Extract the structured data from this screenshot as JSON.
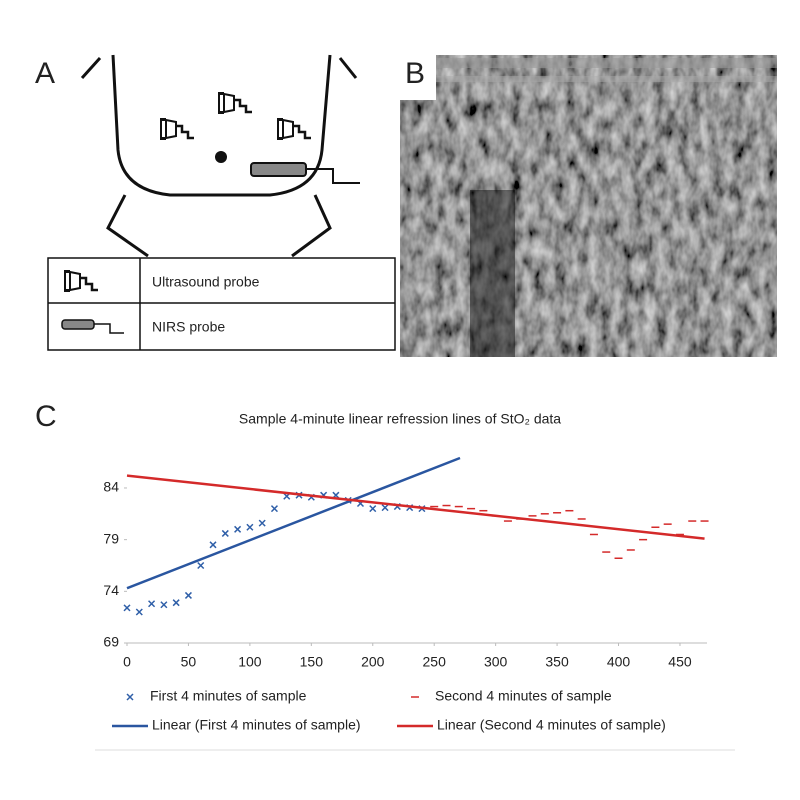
{
  "panel_labels": [
    "A",
    "B",
    "C"
  ],
  "diagram": {
    "legend": [
      "Ultrasound probe",
      "NIRS probe"
    ]
  },
  "chart_data": {
    "type": "scatter",
    "title": "Sample 4-minute linear refression lines of StO₂ data",
    "xlim": [
      0,
      472
    ],
    "ylim": [
      69,
      86.9
    ],
    "xticks": [
      0,
      50,
      100,
      150,
      200,
      250,
      300,
      350,
      400,
      450
    ],
    "yticks": [
      69,
      74,
      79,
      84
    ],
    "series": [
      {
        "name": "First 4 minutes of sample",
        "color": "#2f5fa8",
        "marker": "x",
        "x": [
          0,
          10,
          20,
          30,
          40,
          50,
          60,
          70,
          80,
          90,
          100,
          110,
          120,
          130,
          140,
          150,
          160,
          170,
          180,
          190,
          200,
          210,
          220,
          230,
          240
        ],
        "values": [
          72.4,
          72.0,
          72.8,
          72.7,
          72.9,
          73.6,
          76.5,
          78.5,
          79.6,
          80.0,
          80.2,
          80.6,
          82.0,
          83.2,
          83.3,
          83.1,
          83.3,
          83.3,
          82.8,
          82.5,
          82.0,
          82.1,
          82.2,
          82.1,
          82.0
        ]
      },
      {
        "name": "Second 4 minutes of sample",
        "color": "#d42a2a",
        "marker": "dash",
        "x": [
          250,
          260,
          270,
          280,
          290,
          300,
          310,
          320,
          330,
          340,
          350,
          360,
          370,
          380,
          390,
          400,
          410,
          420,
          430,
          440,
          450,
          460,
          470
        ],
        "values": [
          82.2,
          82.3,
          82.2,
          82.0,
          81.8,
          81.3,
          80.8,
          81.0,
          81.3,
          81.5,
          81.6,
          81.8,
          81.0,
          79.5,
          77.8,
          77.2,
          78.0,
          79.0,
          80.2,
          80.5,
          79.5,
          80.8,
          80.8
        ]
      },
      {
        "name": "Linear (First 4 minutes of sample)",
        "color": "#2a56a0",
        "marker": "line",
        "x": [
          0,
          271
        ],
        "values": [
          74.3,
          86.9
        ]
      },
      {
        "name": "Linear (Second 4 minutes of sample)",
        "color": "#d42a2a",
        "marker": "line",
        "x": [
          0,
          470
        ],
        "values": [
          85.2,
          79.1
        ]
      }
    ]
  }
}
